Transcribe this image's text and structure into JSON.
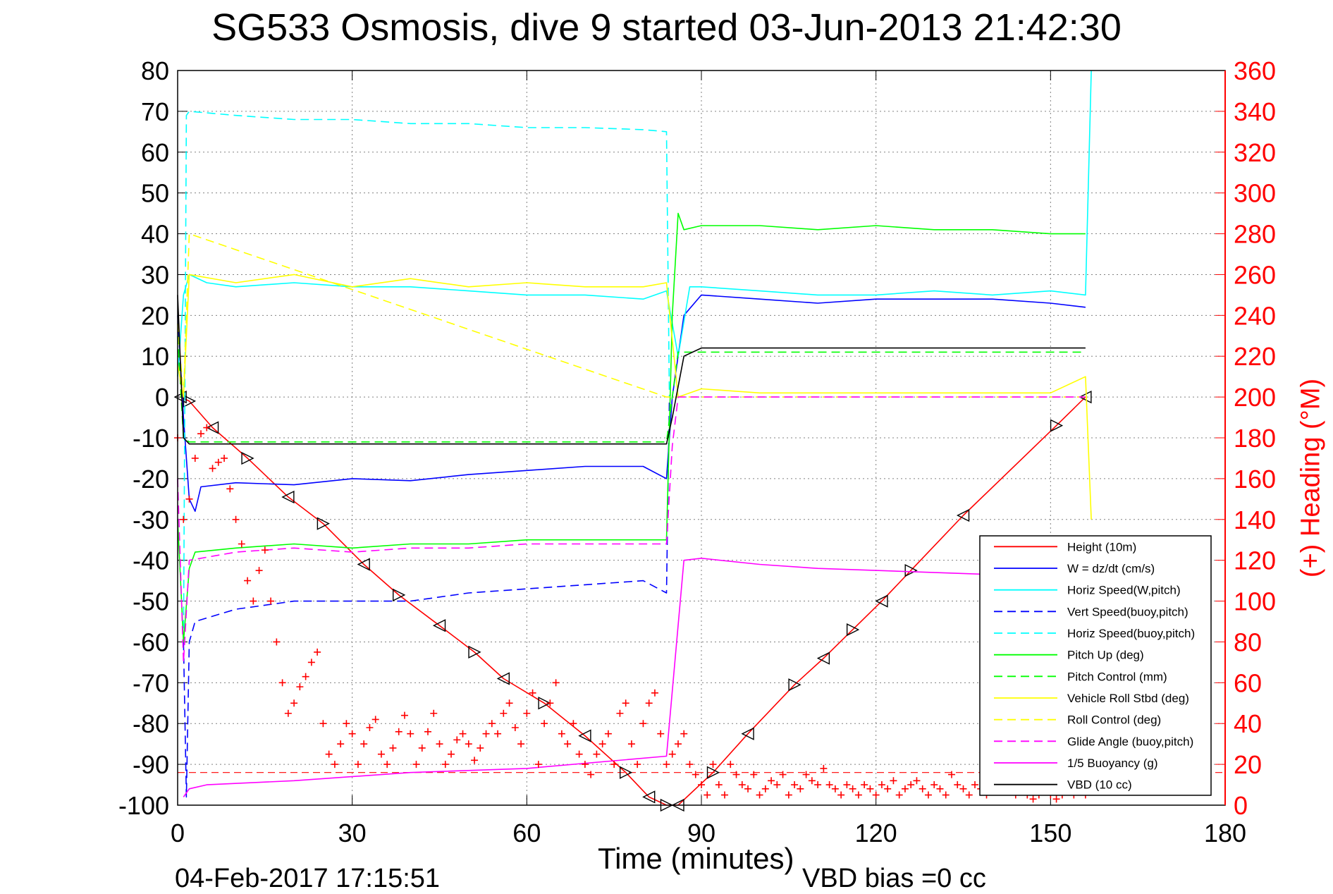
{
  "title": "SG533 Osmosis, dive 9 started 03-Jun-2013 21:42:30",
  "xlabel": "Time (minutes)",
  "y2label": "(+) Heading (°M)",
  "footer_left": "04-Feb-2017 17:15:51",
  "footer_right": "VBD bias =0 cc",
  "colors": {
    "height": "#ff0000",
    "w": "#0000ff",
    "horiz": "#00ffff",
    "pitch": "#00ff00",
    "roll": "#ffff00",
    "glide": "#ff00ff",
    "buoy": "#ff00ff",
    "vbd": "#000000",
    "heading": "#ff0000",
    "axis_right": "#ff0000"
  },
  "chart_data": {
    "type": "line",
    "xlim": [
      0,
      180
    ],
    "ylim": [
      -100,
      80
    ],
    "y2lim": [
      0,
      360
    ],
    "grid": true,
    "legend_position": "bottom-right",
    "x_ticks": [
      0,
      30,
      60,
      90,
      120,
      150,
      180
    ],
    "y_ticks": [
      80,
      70,
      60,
      50,
      40,
      30,
      20,
      10,
      0,
      -10,
      -20,
      -30,
      -40,
      -50,
      -60,
      -70,
      -80,
      -90,
      -100
    ],
    "y2_ticks": [
      360,
      340,
      320,
      300,
      280,
      260,
      240,
      220,
      200,
      180,
      160,
      140,
      120,
      100,
      80,
      60,
      40,
      20,
      0
    ],
    "series": [
      {
        "name": "Height (10m)",
        "color": "#ff0000",
        "style": "solid",
        "marker": "triangle",
        "x": [
          0.5,
          2,
          6,
          12,
          19,
          25,
          32,
          38,
          45,
          51,
          56,
          63,
          70,
          77,
          81,
          84,
          86,
          92,
          98,
          106,
          111,
          116,
          121,
          126,
          135,
          151,
          156
        ],
        "y": [
          0,
          -1,
          -7.5,
          -15,
          -24.5,
          -31,
          -41,
          -48.5,
          -56,
          -62.5,
          -69,
          -75,
          -83,
          -92,
          -98,
          -100,
          -100,
          -92,
          -82.5,
          -70.5,
          -64,
          -57,
          -50,
          -42.5,
          -29,
          -7,
          0
        ]
      },
      {
        "name": "W = dz/dt (cm/s)",
        "color": "#0000ff",
        "style": "solid",
        "x": [
          0,
          1,
          2,
          3,
          4,
          10,
          20,
          30,
          40,
          50,
          60,
          70,
          80,
          84,
          85,
          87,
          90,
          100,
          110,
          120,
          130,
          140,
          150,
          156
        ],
        "y": [
          20,
          -5,
          -25,
          -28,
          -22,
          -21,
          -21.5,
          -20,
          -20.5,
          -19,
          -18,
          -17,
          -17,
          -20,
          0,
          20,
          25,
          24,
          23,
          24,
          24,
          24,
          23,
          22
        ]
      },
      {
        "name": "Horiz Speed(W,pitch)",
        "color": "#00ffff",
        "style": "solid",
        "x": [
          0,
          1,
          2,
          5,
          10,
          20,
          30,
          40,
          50,
          60,
          70,
          80,
          84,
          86,
          88,
          90,
          100,
          110,
          120,
          130,
          140,
          150,
          156,
          157
        ],
        "y": [
          5,
          25,
          30,
          28,
          27,
          28,
          27,
          27,
          26,
          25,
          25,
          24,
          26,
          10,
          27,
          27,
          26,
          25,
          25,
          26,
          25,
          26,
          25,
          80
        ]
      },
      {
        "name": "Vert Speed(buoy,pitch)",
        "color": "#0000ff",
        "style": "dashed",
        "x": [
          1,
          1.5,
          2,
          3,
          10,
          20,
          30,
          40,
          50,
          60,
          70,
          80,
          84,
          84.5
        ],
        "y": [
          -60,
          -98,
          -60,
          -55,
          -52,
          -50,
          -50,
          -50,
          -48,
          -47,
          -46,
          -45,
          -48,
          0
        ]
      },
      {
        "name": "Horiz Speed(buoy,pitch)",
        "color": "#00ffff",
        "style": "dashed",
        "x": [
          1,
          1.5,
          2,
          10,
          20,
          30,
          40,
          50,
          60,
          70,
          80,
          84,
          84.5
        ],
        "y": [
          -60,
          69,
          70,
          69,
          68,
          68,
          67,
          67,
          66,
          66,
          65.5,
          65,
          0
        ]
      },
      {
        "name": "Pitch Up (deg)",
        "color": "#00ff00",
        "style": "solid",
        "x": [
          0,
          1,
          2,
          3,
          10,
          20,
          30,
          40,
          50,
          60,
          70,
          80,
          84,
          85,
          86,
          87,
          90,
          100,
          110,
          120,
          130,
          140,
          150,
          156
        ],
        "y": [
          -30,
          -60,
          -42,
          -38,
          -37,
          -36,
          -37,
          -36,
          -36,
          -35,
          -35,
          -35,
          -35,
          20,
          45,
          41,
          42,
          42,
          41,
          42,
          41,
          41,
          40,
          40
        ]
      },
      {
        "name": "Pitch Control (mm)",
        "color": "#00ff00",
        "style": "dashed",
        "x": [
          0,
          1,
          2,
          84,
          85,
          86,
          156
        ],
        "y": [
          15,
          -10,
          -11,
          -11,
          0,
          11,
          11
        ]
      },
      {
        "name": "Vehicle Roll Stbd (deg)",
        "color": "#ffff00",
        "style": "solid",
        "x": [
          0,
          1,
          2,
          10,
          20,
          30,
          40,
          50,
          60,
          70,
          80,
          84,
          86,
          90,
          100,
          110,
          120,
          130,
          140,
          150,
          156,
          157
        ],
        "y": [
          8,
          0,
          30,
          28,
          30,
          27,
          29,
          27,
          28,
          27,
          27,
          28,
          0,
          2,
          1,
          1,
          1,
          1,
          1,
          1,
          5,
          -30
        ]
      },
      {
        "name": "Roll Control (deg)",
        "color": "#ffff00",
        "style": "dashed",
        "x": [
          0,
          1,
          2,
          84,
          86,
          156
        ],
        "y": [
          18,
          0,
          40,
          0,
          0,
          0
        ]
      },
      {
        "name": "Glide Angle (buoy,pitch)",
        "color": "#ff00ff",
        "style": "dashed",
        "x": [
          0,
          1,
          2,
          10,
          20,
          30,
          40,
          50,
          60,
          70,
          80,
          84,
          85,
          86,
          90,
          156
        ],
        "y": [
          -20,
          -65,
          -40,
          -38,
          -37,
          -38,
          -37,
          -37,
          -36,
          -36,
          -36,
          -36,
          -12,
          0,
          0,
          0
        ]
      },
      {
        "name": "1/5 Buoyancy (g)",
        "color": "#ff00ff",
        "style": "solid",
        "x": [
          1,
          1.5,
          2,
          5,
          20,
          40,
          60,
          84,
          87,
          90,
          100,
          110,
          120,
          140,
          156
        ],
        "y": [
          -98,
          -97,
          -96,
          -95,
          -94,
          -92,
          -91,
          -88,
          -40,
          -39.5,
          -41,
          -42,
          -42.5,
          -43.5,
          -44
        ]
      },
      {
        "name": "VBD (10 cc)",
        "color": "#000000",
        "style": "solid",
        "x": [
          0,
          1,
          2,
          84,
          85,
          87,
          90,
          156
        ],
        "y": [
          25,
          -10,
          -11.5,
          -11.5,
          -5,
          10,
          12,
          12
        ]
      },
      {
        "name": "Heading",
        "color": "#ff0000",
        "style": "plus",
        "axis": "right",
        "x": [
          0,
          1,
          2,
          3,
          4,
          5,
          6,
          7,
          8,
          9,
          10,
          11,
          12,
          13,
          14,
          15,
          16,
          17,
          18,
          19,
          20,
          21,
          22,
          23,
          24,
          25,
          26,
          27,
          28,
          29,
          30,
          31,
          32,
          33,
          34,
          35,
          36,
          37,
          38,
          39,
          40,
          41,
          42,
          43,
          44,
          45,
          46,
          47,
          48,
          49,
          50,
          51,
          52,
          53,
          54,
          55,
          56,
          57,
          58,
          59,
          60,
          61,
          62,
          63,
          64,
          65,
          66,
          67,
          68,
          69,
          70,
          71,
          72,
          73,
          74,
          75,
          76,
          77,
          78,
          79,
          80,
          81,
          82,
          83,
          84,
          85,
          86,
          87,
          88,
          89,
          90,
          91,
          92,
          93,
          94,
          95,
          96,
          97,
          98,
          99,
          100,
          101,
          102,
          103,
          104,
          105,
          106,
          107,
          108,
          109,
          110,
          111,
          112,
          113,
          114,
          115,
          116,
          117,
          118,
          119,
          120,
          121,
          122,
          123,
          124,
          125,
          126,
          127,
          128,
          129,
          130,
          131,
          132,
          133,
          134,
          135,
          136,
          137,
          138,
          139,
          140,
          141,
          142,
          143,
          144,
          145,
          146,
          147,
          148,
          149,
          150,
          151,
          152,
          153,
          154,
          155,
          156
        ],
        "y": [
          180,
          140,
          150,
          170,
          182,
          185,
          165,
          168,
          170,
          155,
          140,
          128,
          110,
          100,
          115,
          125,
          100,
          80,
          60,
          45,
          50,
          58,
          63,
          70,
          75,
          40,
          25,
          20,
          30,
          40,
          35,
          20,
          30,
          38,
          42,
          25,
          20,
          28,
          36,
          44,
          35,
          20,
          28,
          36,
          45,
          30,
          20,
          25,
          32,
          35,
          30,
          22,
          28,
          35,
          40,
          35,
          45,
          50,
          38,
          30,
          45,
          55,
          20,
          40,
          50,
          60,
          35,
          30,
          40,
          25,
          20,
          15,
          25,
          30,
          35,
          20,
          45,
          50,
          30,
          20,
          40,
          50,
          55,
          35,
          20,
          25,
          30,
          35,
          20,
          15,
          10,
          5,
          20,
          10,
          5,
          20,
          15,
          10,
          8,
          15,
          5,
          8,
          12,
          10,
          15,
          5,
          10,
          8,
          15,
          12,
          10,
          18,
          10,
          8,
          5,
          10,
          8,
          5,
          10,
          8,
          5,
          10,
          8,
          12,
          5,
          8,
          10,
          12,
          8,
          5,
          10,
          8,
          5,
          15,
          10,
          8,
          5,
          10,
          8,
          5,
          8,
          10,
          12,
          8,
          5,
          10,
          5,
          3,
          5,
          8,
          5,
          3,
          5,
          10,
          5,
          8,
          5
        ]
      }
    ]
  }
}
